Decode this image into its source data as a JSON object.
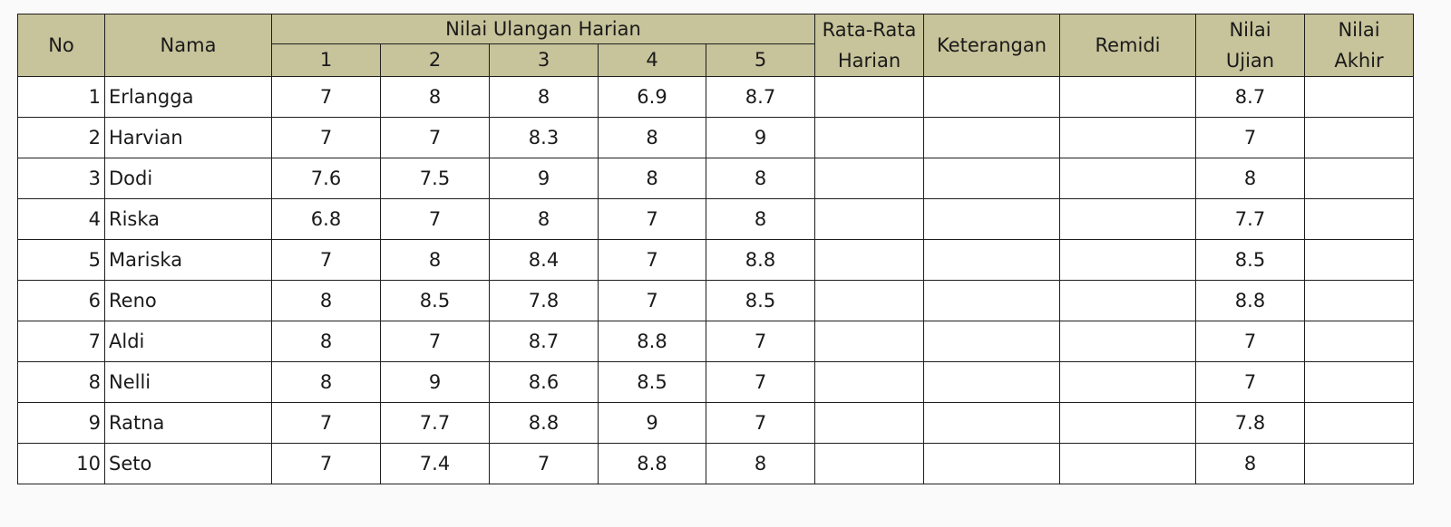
{
  "headers": {
    "no": "No",
    "nama": "Nama",
    "nilai_ulangan_harian": "Nilai Ulangan Harian",
    "test_numbers": [
      "1",
      "2",
      "3",
      "4",
      "5"
    ],
    "rata_rata_line1": "Rata-Rata",
    "rata_rata_line2": "Harian",
    "keterangan": "Keterangan",
    "remidi": "Remidi",
    "nilai_ujian_line1": "Nilai",
    "nilai_ujian_line2": "Ujian",
    "nilai_akhir_line1": "Nilai",
    "nilai_akhir_line2": "Akhir"
  },
  "rows": [
    {
      "no": "1",
      "nama": "Erlangga",
      "scores": [
        "7",
        "8",
        "8",
        "6.9",
        "8.7"
      ],
      "rata_rata": "",
      "keterangan": "",
      "remidi": "",
      "nilai_ujian": "8.7",
      "nilai_akhir": ""
    },
    {
      "no": "2",
      "nama": "Harvian",
      "scores": [
        "7",
        "7",
        "8.3",
        "8",
        "9"
      ],
      "rata_rata": "",
      "keterangan": "",
      "remidi": "",
      "nilai_ujian": "7",
      "nilai_akhir": ""
    },
    {
      "no": "3",
      "nama": "Dodi",
      "scores": [
        "7.6",
        "7.5",
        "9",
        "8",
        "8"
      ],
      "rata_rata": "",
      "keterangan": "",
      "remidi": "",
      "nilai_ujian": "8",
      "nilai_akhir": ""
    },
    {
      "no": "4",
      "nama": "Riska",
      "scores": [
        "6.8",
        "7",
        "8",
        "7",
        "8"
      ],
      "rata_rata": "",
      "keterangan": "",
      "remidi": "",
      "nilai_ujian": "7.7",
      "nilai_akhir": ""
    },
    {
      "no": "5",
      "nama": "Mariska",
      "scores": [
        "7",
        "8",
        "8.4",
        "7",
        "8.8"
      ],
      "rata_rata": "",
      "keterangan": "",
      "remidi": "",
      "nilai_ujian": "8.5",
      "nilai_akhir": ""
    },
    {
      "no": "6",
      "nama": "Reno",
      "scores": [
        "8",
        "8.5",
        "7.8",
        "7",
        "8.5"
      ],
      "rata_rata": "",
      "keterangan": "",
      "remidi": "",
      "nilai_ujian": "8.8",
      "nilai_akhir": ""
    },
    {
      "no": "7",
      "nama": "Aldi",
      "scores": [
        "8",
        "7",
        "8.7",
        "8.8",
        "7"
      ],
      "rata_rata": "",
      "keterangan": "",
      "remidi": "",
      "nilai_ujian": "7",
      "nilai_akhir": ""
    },
    {
      "no": "8",
      "nama": "Nelli",
      "scores": [
        "8",
        "9",
        "8.6",
        "8.5",
        "7"
      ],
      "rata_rata": "",
      "keterangan": "",
      "remidi": "",
      "nilai_ujian": "7",
      "nilai_akhir": ""
    },
    {
      "no": "9",
      "nama": "Ratna",
      "scores": [
        "7",
        "7.7",
        "8.8",
        "9",
        "7"
      ],
      "rata_rata": "",
      "keterangan": "",
      "remidi": "",
      "nilai_ujian": "7.8",
      "nilai_akhir": ""
    },
    {
      "no": "10",
      "nama": "Seto",
      "scores": [
        "7",
        "7.4",
        "7",
        "8.8",
        "8"
      ],
      "rata_rata": "",
      "keterangan": "",
      "remidi": "",
      "nilai_ujian": "8",
      "nilai_akhir": ""
    }
  ],
  "colors": {
    "header_background": "#c7c39a",
    "border": "#1e1e1e"
  }
}
